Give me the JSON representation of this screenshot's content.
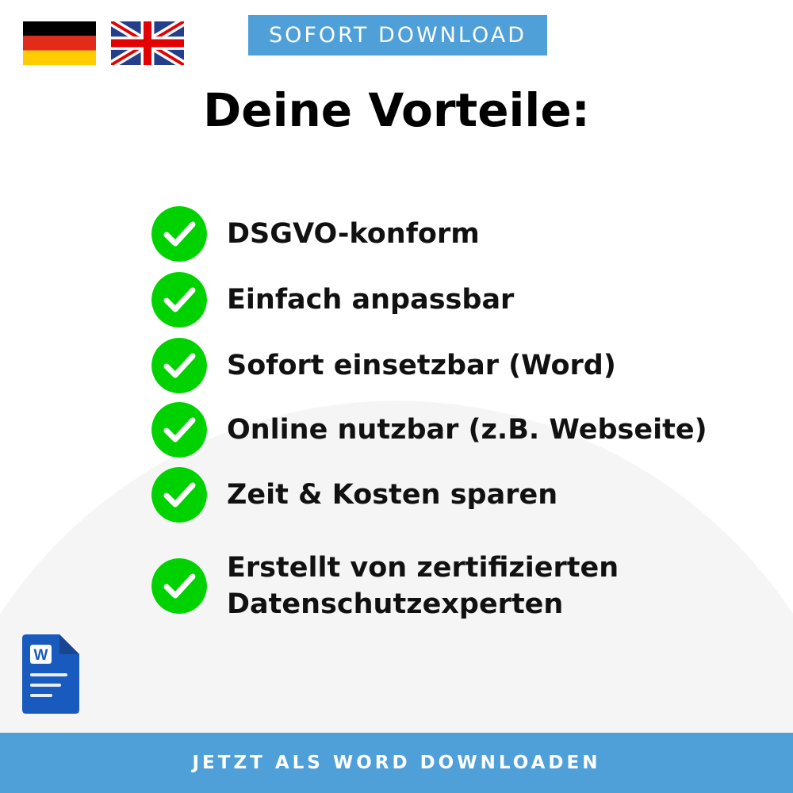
{
  "header": {
    "flags": [
      {
        "icon": "germany-flag-icon",
        "colors": [
          "#000000",
          "#e32b1b",
          "#ffcc00"
        ]
      },
      {
        "icon": "uk-flag-icon",
        "colors": [
          "#233f8c",
          "#ffffff",
          "#e30000"
        ]
      }
    ],
    "badge_label": "SOFORT DOWNLOAD"
  },
  "title": "Deine Vorteile:",
  "benefits": [
    {
      "label": "DSGVO-konform",
      "icon": "check-circle-icon"
    },
    {
      "label": "Einfach anpassbar",
      "icon": "check-circle-icon"
    },
    {
      "label": "Sofort einsetzbar (Word)",
      "icon": "check-circle-icon"
    },
    {
      "label": "Online nutzbar (z.B. Webseite)",
      "icon": "check-circle-icon"
    },
    {
      "label": "Zeit & Kosten sparen",
      "icon": "check-circle-icon"
    },
    {
      "label": "Erstellt von zertifizierten\nDatenschutzexperten",
      "icon": "check-circle-icon"
    }
  ],
  "word_icon": {
    "icon": "word-document-icon",
    "letter": "W"
  },
  "footer_label": "JETZT ALS WORD DOWNLOADEN",
  "colors": {
    "accent": "#4fa0d8",
    "check": "#00d200",
    "word": "#185abd"
  }
}
